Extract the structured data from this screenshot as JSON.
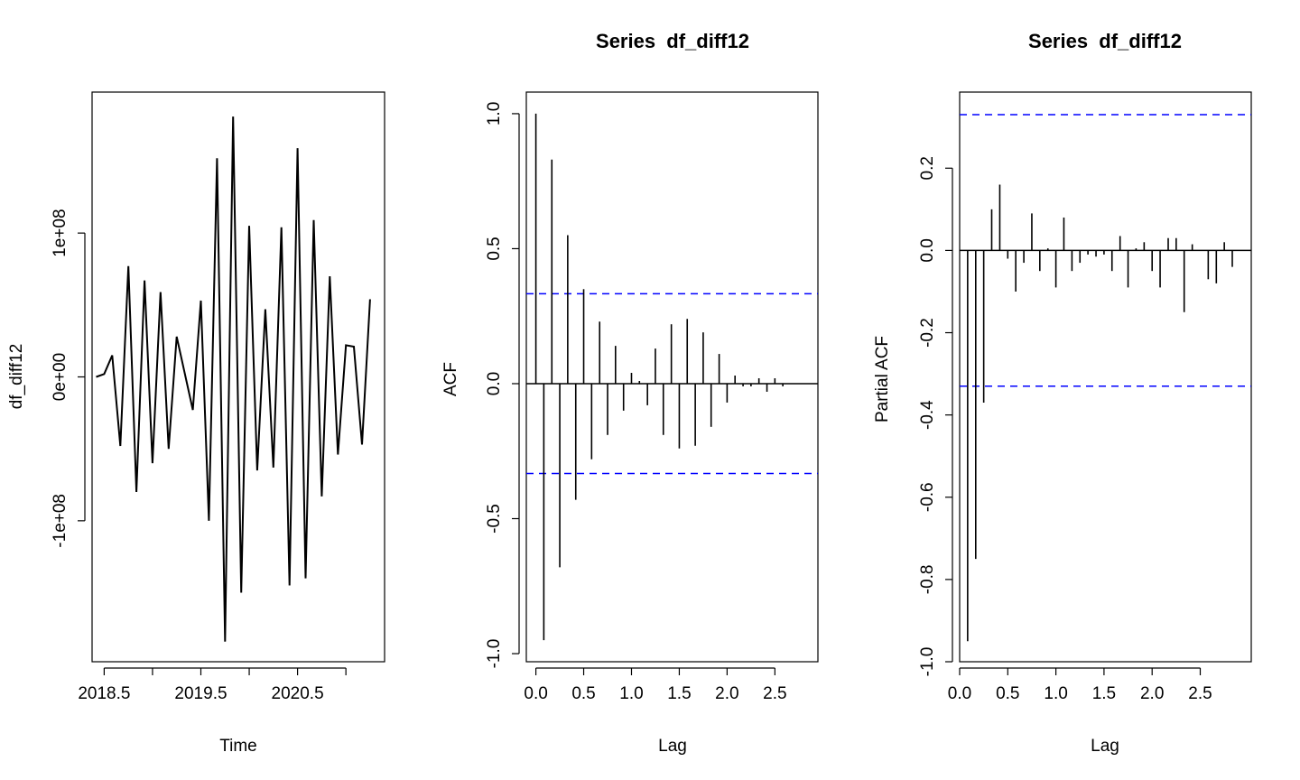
{
  "chart_data": [
    {
      "type": "line",
      "title": "",
      "xlabel": "Time",
      "ylabel": "df_diff12",
      "xlim": [
        2018.375,
        2021.4
      ],
      "ylim": [
        -198000000.0,
        198000000.0
      ],
      "xticks": [
        2018.5,
        2019.5,
        2020.5
      ],
      "xtick_labels": [
        "2018.5",
        "2019.5",
        "2020.5"
      ],
      "xticks_minor": [
        2018.5,
        2019.0,
        2019.5,
        2020.0,
        2020.5,
        2021.0
      ],
      "yticks": [
        -100000000.0,
        0,
        100000000.0
      ],
      "ytick_labels": [
        "-1e+08",
        "0e+00",
        "1e+08"
      ],
      "series": [
        {
          "x": [
            2018.417,
            2018.5,
            2018.583,
            2018.667,
            2018.75,
            2018.833,
            2018.917,
            2019.0,
            2019.083,
            2019.167,
            2019.25,
            2019.417,
            2019.5,
            2019.583,
            2019.667,
            2019.75,
            2019.833,
            2019.917,
            2020.0,
            2020.083,
            2020.167,
            2020.25,
            2020.333,
            2020.417,
            2020.5,
            2020.583,
            2020.667,
            2020.75,
            2020.833,
            2020.917,
            2021.0,
            2021.083,
            2021.167,
            2021.25
          ],
          "y": [
            0.0,
            2000000.0,
            15000000.0,
            -48000000.0,
            77000000.0,
            -80000000.0,
            67000000.0,
            -60000000.0,
            59000000.0,
            -50000000.0,
            28000000.0,
            -23000000.0,
            53000000.0,
            -100000000.0,
            152000000.0,
            -184000000.0,
            181000000.0,
            -150000000.0,
            105000000.0,
            -65000000.0,
            47000000.0,
            -63000000.0,
            104000000.0,
            -145000000.0,
            159000000.0,
            -140000000.0,
            109000000.0,
            -83000000.0,
            70000000.0,
            -54000000.0,
            22000000.0,
            21000000.0,
            -47000000.0,
            54000000.0
          ]
        }
      ]
    },
    {
      "type": "bar",
      "title": "Series  df_diff12",
      "xlabel": "Lag",
      "ylabel": "ACF",
      "xlim": [
        -0.1,
        2.95
      ],
      "ylim": [
        -1.03,
        1.08
      ],
      "xticks": [
        0.0,
        0.5,
        1.0,
        1.5,
        2.0,
        2.5
      ],
      "xtick_labels": [
        "0.0",
        "0.5",
        "1.0",
        "1.5",
        "2.0",
        "2.5"
      ],
      "yticks": [
        -1.0,
        -0.5,
        0.0,
        0.5,
        1.0
      ],
      "ytick_labels": [
        "-1.0",
        "-0.5",
        "0.0",
        "0.5",
        "1.0"
      ],
      "ci": 0.333,
      "lags": [
        0.0,
        0.083,
        0.167,
        0.25,
        0.333,
        0.417,
        0.5,
        0.583,
        0.667,
        0.75,
        0.833,
        0.917,
        1.0,
        1.083,
        1.167,
        1.25,
        1.333,
        1.417,
        1.5,
        1.583,
        1.667,
        1.75,
        1.833,
        1.917,
        2.0,
        2.083,
        2.167,
        2.25,
        2.333,
        2.417,
        2.5,
        2.583
      ],
      "values": [
        1.0,
        -0.95,
        0.83,
        -0.68,
        0.55,
        -0.43,
        0.35,
        -0.28,
        0.23,
        -0.19,
        0.14,
        -0.1,
        0.04,
        0.01,
        -0.08,
        0.13,
        -0.19,
        0.22,
        -0.24,
        0.24,
        -0.23,
        0.19,
        -0.16,
        0.11,
        -0.07,
        0.03,
        -0.01,
        -0.01,
        0.02,
        -0.03,
        0.02,
        -0.01
      ]
    },
    {
      "type": "bar",
      "title": "Series  df_diff12",
      "xlabel": "Lag",
      "ylabel": "Partial ACF",
      "xlim": [
        0.0,
        3.03
      ],
      "ylim": [
        -1.0,
        0.385
      ],
      "xticks": [
        0.0,
        0.5,
        1.0,
        1.5,
        2.0,
        2.5
      ],
      "xtick_labels": [
        "0.0",
        "0.5",
        "1.0",
        "1.5",
        "2.0",
        "2.5"
      ],
      "yticks": [
        -1.0,
        -0.8,
        -0.6,
        -0.4,
        -0.2,
        0.0,
        0.2
      ],
      "ytick_labels": [
        "-1.0",
        "-0.8",
        "-0.6",
        "-0.4",
        "-0.2",
        "0.0",
        "0.2"
      ],
      "ci": 0.33,
      "lags": [
        0.083,
        0.167,
        0.25,
        0.333,
        0.417,
        0.5,
        0.583,
        0.667,
        0.75,
        0.833,
        0.917,
        1.0,
        1.083,
        1.167,
        1.25,
        1.333,
        1.417,
        1.5,
        1.583,
        1.667,
        1.75,
        1.833,
        1.917,
        2.0,
        2.083,
        2.167,
        2.25,
        2.333,
        2.417,
        2.5,
        2.583,
        2.667,
        2.75,
        2.833
      ],
      "values": [
        -0.95,
        -0.75,
        -0.37,
        0.1,
        0.16,
        -0.02,
        -0.1,
        -0.03,
        0.09,
        -0.05,
        0.005,
        -0.09,
        0.08,
        -0.05,
        -0.03,
        -0.01,
        -0.015,
        -0.01,
        -0.05,
        0.035,
        -0.09,
        0.005,
        0.02,
        -0.05,
        -0.09,
        0.03,
        0.03,
        -0.15,
        0.015,
        0.0,
        -0.07,
        -0.08,
        0.02,
        -0.04
      ]
    }
  ]
}
